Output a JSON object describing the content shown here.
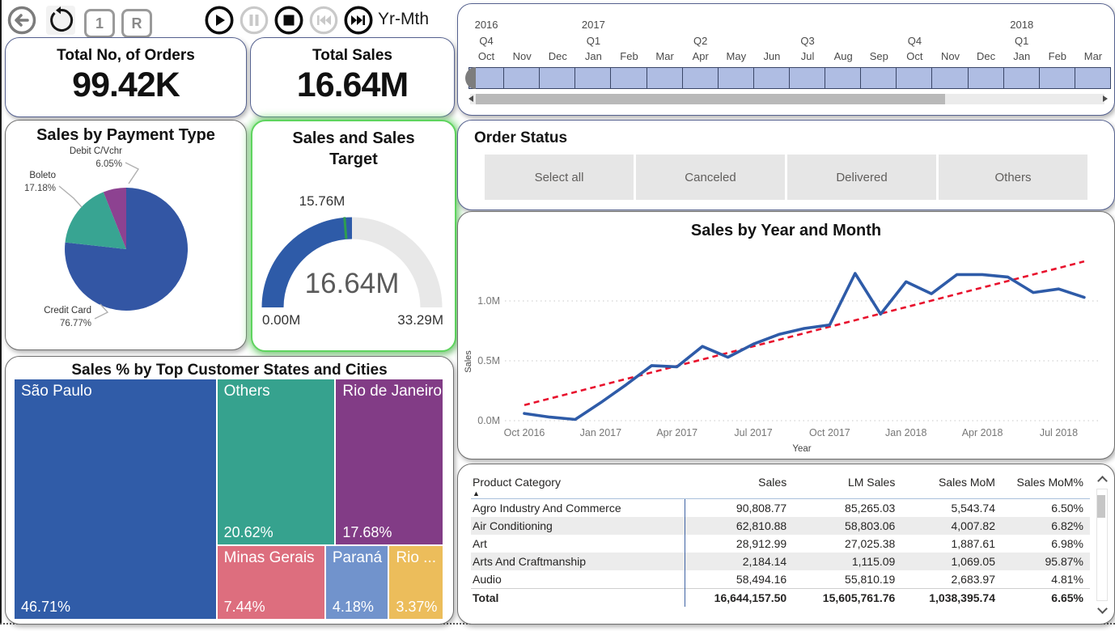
{
  "toolbar": {
    "bookmark_1": "1",
    "bookmark_r": "R",
    "animation_field_label": "Yr-Mth"
  },
  "kpis": {
    "orders": {
      "title": "Total No, of Orders",
      "value": "99.42K"
    },
    "sales": {
      "title": "Total Sales",
      "value": "16.64M"
    }
  },
  "timeline": {
    "years": [
      {
        "label": "2016",
        "col": 0
      },
      {
        "label": "2017",
        "col": 3
      },
      {
        "label": "2018",
        "col": 15
      }
    ],
    "quarters": [
      {
        "label": "Q4",
        "col": 0
      },
      {
        "label": "Q1",
        "col": 3
      },
      {
        "label": "Q2",
        "col": 6
      },
      {
        "label": "Q3",
        "col": 9
      },
      {
        "label": "Q4",
        "col": 12
      },
      {
        "label": "Q1",
        "col": 15
      }
    ],
    "months": [
      "Oct",
      "Nov",
      "Dec",
      "Jan",
      "Feb",
      "Mar",
      "Apr",
      "May",
      "Jun",
      "Jul",
      "Aug",
      "Sep",
      "Oct",
      "Nov",
      "Dec",
      "Jan",
      "Feb",
      "Mar"
    ],
    "cell_color": "#AFBDE3",
    "cell_border": "#3A4667"
  },
  "order_status": {
    "title": "Order Status",
    "buttons": [
      "Select all",
      "Canceled",
      "Delivered",
      "Others"
    ]
  },
  "chart_data": [
    {
      "type": "pie",
      "title": "Sales by Payment Type",
      "slices": [
        {
          "label": "Credit Card",
          "pct": 76.77,
          "pct_label": "76.77%",
          "color": "#3356A4"
        },
        {
          "label": "Boleto",
          "pct": 17.18,
          "pct_label": "17.18%",
          "color": "#38A492"
        },
        {
          "label": "Debit C/Vchr",
          "pct": 6.05,
          "pct_label": "6.05%",
          "color": "#8D4291"
        }
      ]
    },
    {
      "type": "gauge",
      "title": "Sales and Sales Target",
      "min": 0,
      "max": 33.29,
      "value": 16.64,
      "target": 15.76,
      "min_label": "0.00M",
      "max_label": "33.29M",
      "value_label": "16.64M",
      "target_label": "15.76M",
      "fill_color": "#2E5BA8",
      "track_color": "#e8e8e8",
      "target_color": "#2E9E4F"
    },
    {
      "type": "line",
      "title": "Sales by Year and Month",
      "xlabel": "Year",
      "ylabel": "Sales",
      "x": [
        "Oct 2016",
        "Nov 2016",
        "Dec 2016",
        "Jan 2017",
        "Feb 2017",
        "Mar 2017",
        "Apr 2017",
        "May 2017",
        "Jun 2017",
        "Jul 2017",
        "Aug 2017",
        "Sep 2017",
        "Oct 2017",
        "Nov 2017",
        "Dec 2017",
        "Jan 2018",
        "Feb 2018",
        "Mar 2018",
        "Apr 2018",
        "May 2018",
        "Jun 2018",
        "Jul 2018",
        "Aug 2018"
      ],
      "values": [
        0.06,
        0.03,
        0.01,
        0.15,
        0.3,
        0.46,
        0.45,
        0.62,
        0.53,
        0.64,
        0.72,
        0.77,
        0.8,
        1.23,
        0.89,
        1.16,
        1.06,
        1.22,
        1.22,
        1.2,
        1.07,
        1.1,
        1.03
      ],
      "yticks": [
        "0.0M",
        "0.5M",
        "1.0M"
      ],
      "ytick_values": [
        0,
        0.5,
        1.0
      ],
      "xtick_indices": [
        0,
        3,
        6,
        9,
        12,
        15,
        18,
        21
      ],
      "ylim": [
        0,
        1.4
      ],
      "trend": {
        "start": 0.13,
        "end": 1.33,
        "color": "#E8112D",
        "style": "dashed"
      },
      "line_color": "#2E5BA8",
      "grid": "dotted"
    },
    {
      "type": "treemap",
      "title": "Sales % by Top Customer States and Cities",
      "tiles": [
        {
          "label": "São Paulo",
          "pct": 46.71,
          "pct_label": "46.71%",
          "color": "#305CA8"
        },
        {
          "label": "Others",
          "pct": 20.62,
          "pct_label": "20.62%",
          "color": "#36A28E"
        },
        {
          "label": "Rio de Janeiro",
          "pct": 17.68,
          "pct_label": "17.68%",
          "color": "#823C86"
        },
        {
          "label": "Minas Gerais",
          "pct": 7.44,
          "pct_label": "7.44%",
          "color": "#DD6E7E"
        },
        {
          "label": "Paraná",
          "pct": 4.18,
          "pct_label": "4.18%",
          "color": "#7193CC"
        },
        {
          "label": "Rio ...",
          "pct": 3.37,
          "pct_label": "3.37%",
          "color": "#ECBD5B"
        }
      ]
    },
    {
      "type": "table",
      "columns": [
        "Product Category",
        "Sales",
        "LM Sales",
        "Sales MoM",
        "Sales MoM%"
      ],
      "sorted_column": "Product Category",
      "sort_icon": "▲",
      "rows": [
        [
          "Agro Industry And Commerce",
          "90,808.77",
          "85,265.03",
          "5,543.74",
          "6.50%"
        ],
        [
          "Air Conditioning",
          "62,810.88",
          "58,803.06",
          "4,007.82",
          "6.82%"
        ],
        [
          "Art",
          "28,912.99",
          "27,025.38",
          "1,887.61",
          "6.98%"
        ],
        [
          "Arts And Craftmanship",
          "2,184.14",
          "1,115.09",
          "1,069.05",
          "95.87%"
        ],
        [
          "Audio",
          "58,494.16",
          "55,810.19",
          "2,683.97",
          "4.81%"
        ]
      ],
      "total": [
        "Total",
        "16,644,157.50",
        "15,605,761.76",
        "1,038,395.74",
        "6.65%"
      ]
    }
  ]
}
